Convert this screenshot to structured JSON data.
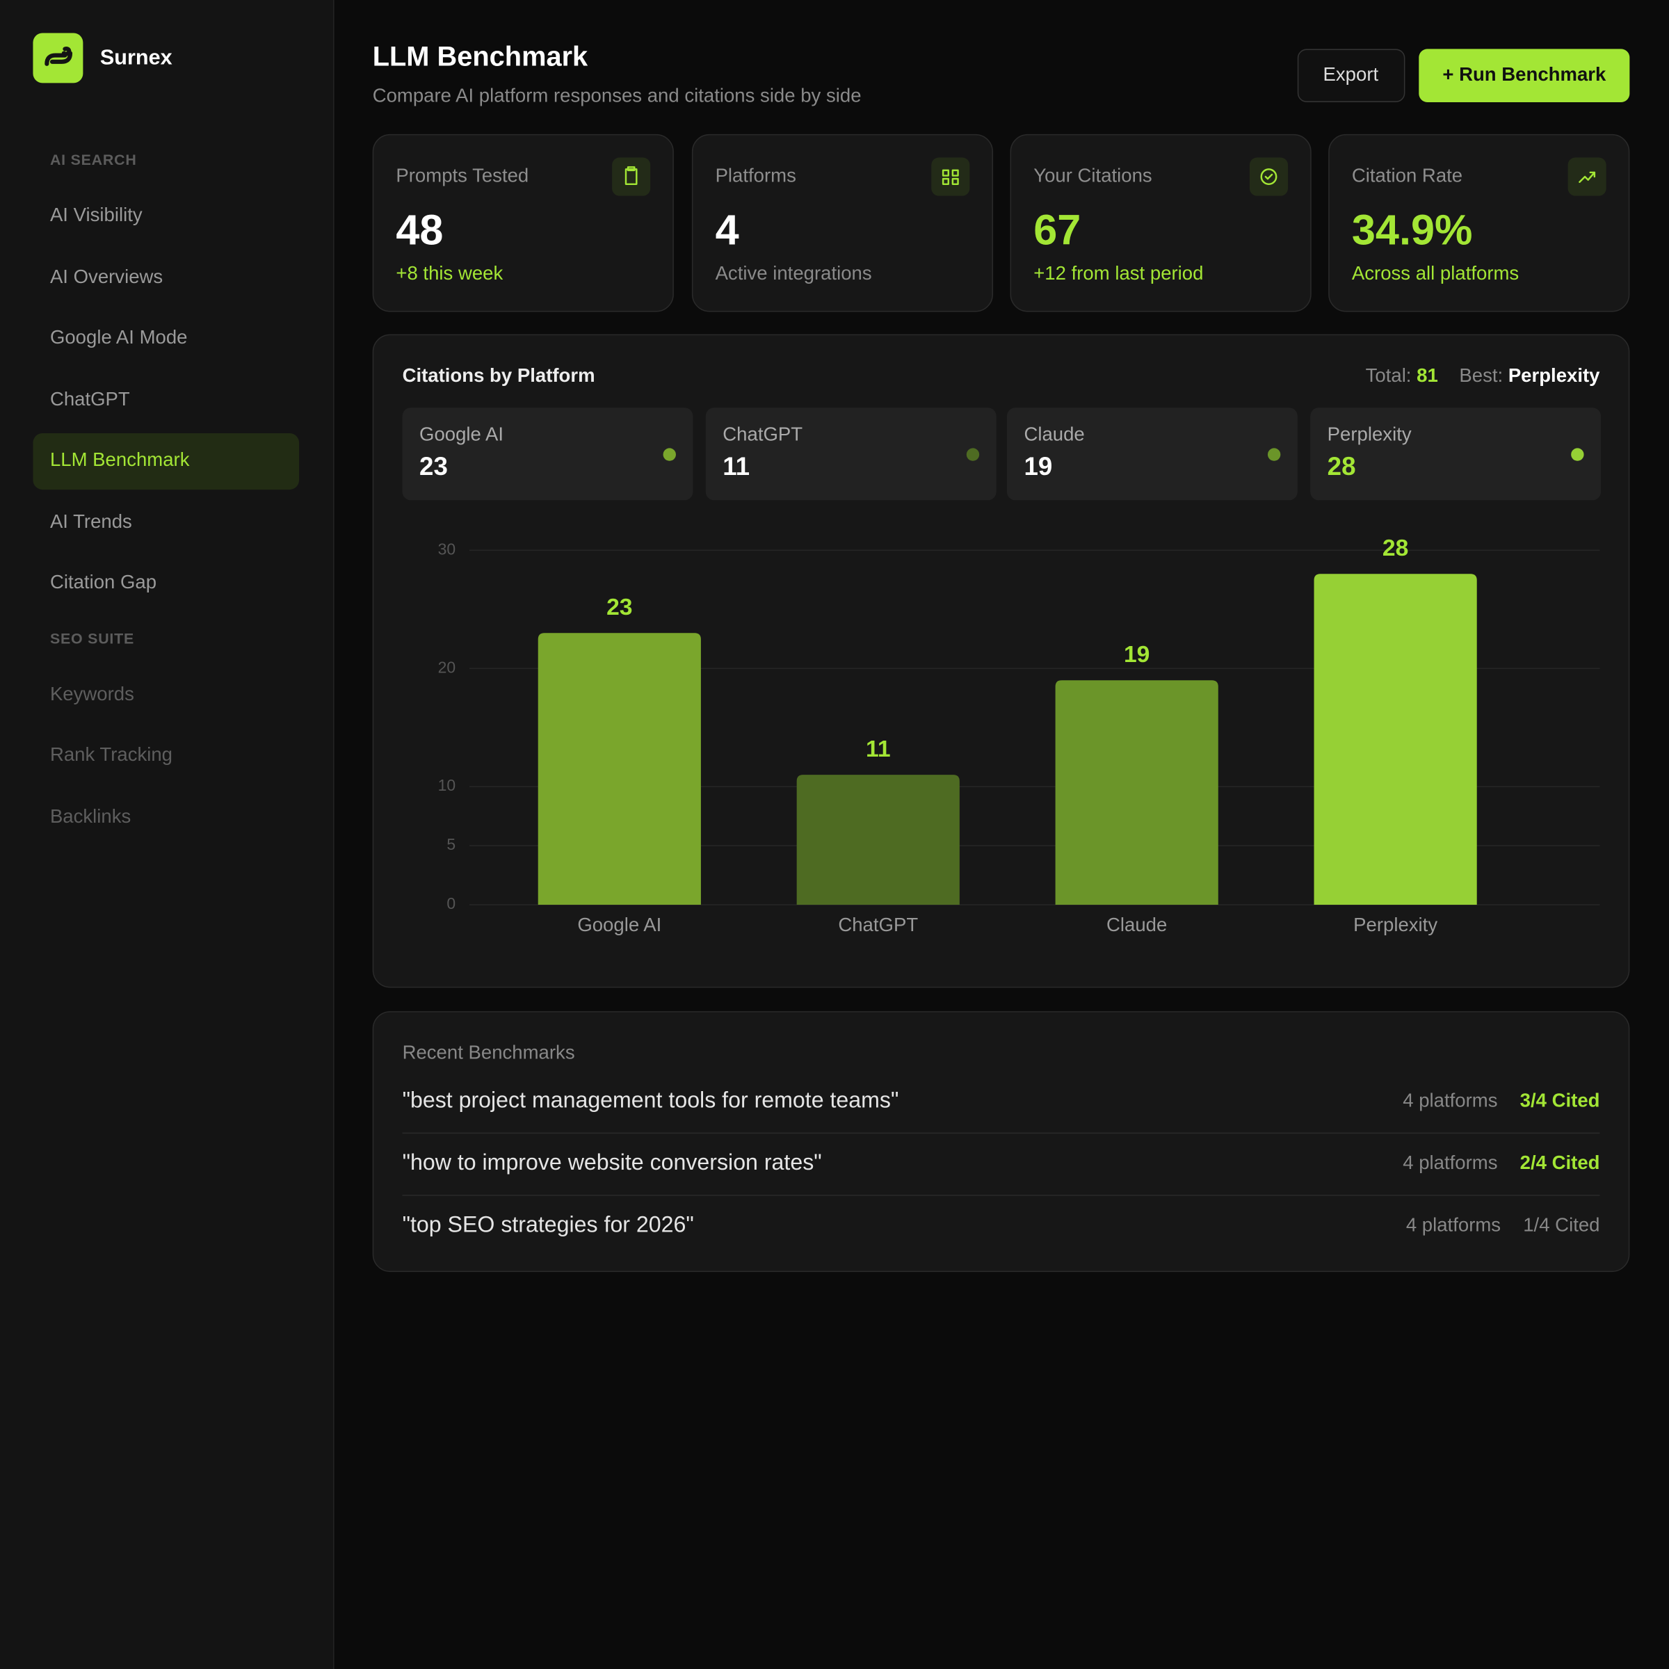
{
  "sidebar": {
    "brand": "Surnex",
    "sections": [
      {
        "title": "AI SEARCH",
        "items": [
          "AI Visibility",
          "AI Overviews",
          "Google AI Mode",
          "ChatGPT",
          "LLM Benchmark",
          "AI Trends",
          "Citation Gap"
        ]
      },
      {
        "title": "SEO SUITE",
        "items": [
          "Keywords",
          "Rank Tracking",
          "Backlinks"
        ]
      }
    ]
  },
  "header": {
    "title": "LLM Benchmark",
    "subtitle": "Compare AI platform responses and citations side by side",
    "export": "Export",
    "run": "+ Run Benchmark"
  },
  "stats": [
    {
      "label": "Prompts Tested",
      "value": "48",
      "note": "+8 this week"
    },
    {
      "label": "Platforms",
      "value": "4",
      "note": "Active integrations"
    },
    {
      "label": "Your Citations",
      "value": "67",
      "note": "+12 from last period"
    },
    {
      "label": "Citation Rate",
      "value": "34.9%",
      "note": "Across all platforms"
    }
  ],
  "chart_data": {
    "type": "bar",
    "title": "Citations by Platform",
    "total_label": "Total:",
    "total": 81,
    "best_label": "Best:",
    "best": "Perplexity",
    "categories": [
      "Google AI",
      "ChatGPT",
      "Claude",
      "Perplexity"
    ],
    "values": [
      23,
      11,
      19,
      28
    ],
    "colors": [
      "#7aa62c",
      "#4e6b22",
      "#6b9529",
      "#96d035"
    ],
    "ylim": [
      0,
      30
    ],
    "yticks": [
      0,
      5,
      10,
      20,
      30
    ],
    "grid": true
  },
  "recent": {
    "title": "Recent Benchmarks",
    "rows": [
      {
        "prompt": "\"best project management tools for remote teams\"",
        "platforms": "4 platforms",
        "cited": "3/4 Cited"
      },
      {
        "prompt": "\"how to improve website conversion rates\"",
        "platforms": "4 platforms",
        "cited": "2/4 Cited"
      },
      {
        "prompt": "\"top SEO strategies for 2026\"",
        "platforms": "4 platforms",
        "cited": "1/4 Cited"
      }
    ]
  }
}
